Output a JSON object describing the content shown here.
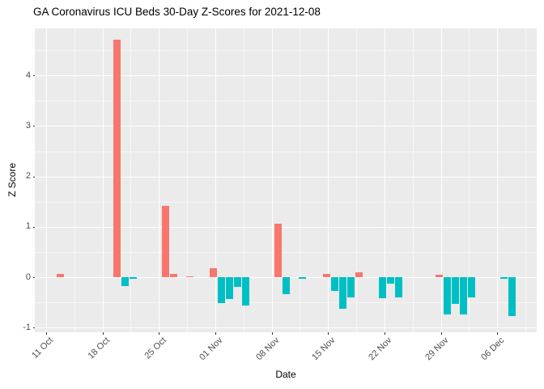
{
  "chart_data": {
    "type": "bar",
    "title": "GA Coronavirus ICU Beds 30-Day Z-Scores for 2021-12-08",
    "xlabel": "Date",
    "ylabel": "Z Score",
    "legend": "none",
    "grid": "white major and minor gridlines on gray panel",
    "ylim": [
      -1.09,
      4.94
    ],
    "y_ticks": [
      -1,
      0,
      1,
      2,
      3,
      4
    ],
    "y_tick_labels": [
      "-1",
      "0",
      "1",
      "2",
      "3",
      "4"
    ],
    "x_start_date": "2021-10-11",
    "x_tick_interval_days": 7,
    "x_tick_labels": [
      "11 Oct",
      "18 Oct",
      "25 Oct",
      "01 Nov",
      "08 Nov",
      "15 Nov",
      "22 Nov",
      "29 Nov",
      "06 Dec"
    ],
    "bars": [
      {
        "date": "2021-10-13",
        "z": 0.07
      },
      {
        "date": "2021-10-20",
        "z": 4.71
      },
      {
        "date": "2021-10-21",
        "z": -0.18
      },
      {
        "date": "2021-10-22",
        "z": -0.04
      },
      {
        "date": "2021-10-26",
        "z": 1.42
      },
      {
        "date": "2021-10-27",
        "z": 0.07
      },
      {
        "date": "2021-10-29",
        "z": 0.02
      },
      {
        "date": "2021-11-01",
        "z": 0.18
      },
      {
        "date": "2021-11-02",
        "z": -0.51
      },
      {
        "date": "2021-11-03",
        "z": -0.44
      },
      {
        "date": "2021-11-04",
        "z": -0.2
      },
      {
        "date": "2021-11-05",
        "z": -0.57
      },
      {
        "date": "2021-11-09",
        "z": 1.06
      },
      {
        "date": "2021-11-10",
        "z": -0.33
      },
      {
        "date": "2021-11-12",
        "z": -0.03
      },
      {
        "date": "2021-11-15",
        "z": 0.06
      },
      {
        "date": "2021-11-16",
        "z": -0.28
      },
      {
        "date": "2021-11-17",
        "z": -0.63
      },
      {
        "date": "2021-11-18",
        "z": -0.4
      },
      {
        "date": "2021-11-19",
        "z": 0.1
      },
      {
        "date": "2021-11-22",
        "z": -0.42
      },
      {
        "date": "2021-11-23",
        "z": -0.13
      },
      {
        "date": "2021-11-24",
        "z": -0.4
      },
      {
        "date": "2021-11-29",
        "z": 0.05
      },
      {
        "date": "2021-11-30",
        "z": -0.74
      },
      {
        "date": "2021-12-01",
        "z": -0.53
      },
      {
        "date": "2021-12-02",
        "z": -0.74
      },
      {
        "date": "2021-12-03",
        "z": -0.4
      },
      {
        "date": "2021-12-07",
        "z": -0.03
      },
      {
        "date": "2021-12-08",
        "z": -0.77
      }
    ],
    "colors": {
      "positive": "#F8766D",
      "negative": "#00BFC4",
      "panel_background": "#EBEBEB",
      "gridline": "#FFFFFF",
      "axis_text": "#4D4D4D",
      "title_text": "#000000"
    }
  }
}
